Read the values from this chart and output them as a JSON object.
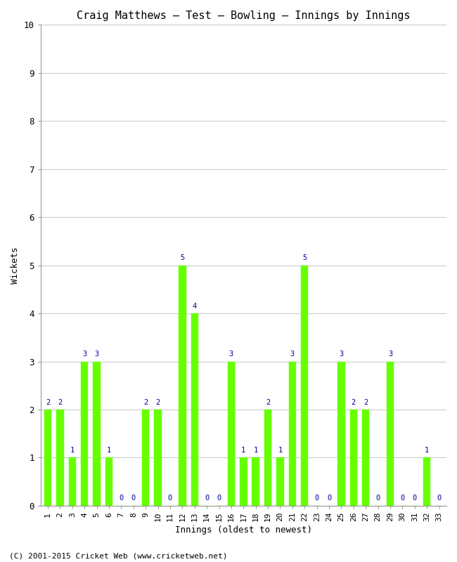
{
  "title": "Craig Matthews – Test – Bowling – Innings by Innings",
  "xlabel": "Innings (oldest to newest)",
  "ylabel": "Wickets",
  "footnote": "(C) 2001-2015 Cricket Web (www.cricketweb.net)",
  "bar_color": "#66FF00",
  "label_color": "#000099",
  "background_color": "#ffffff",
  "grid_color": "#cccccc",
  "ylim": [
    0,
    10
  ],
  "yticks": [
    0,
    1,
    2,
    3,
    4,
    5,
    6,
    7,
    8,
    9,
    10
  ],
  "innings": [
    1,
    2,
    3,
    4,
    5,
    6,
    7,
    8,
    9,
    10,
    11,
    12,
    13,
    14,
    15,
    16,
    17,
    18,
    19,
    20,
    21,
    22,
    23,
    24,
    25,
    26,
    27,
    28,
    29,
    30,
    31,
    32,
    33
  ],
  "wickets": [
    2,
    2,
    1,
    3,
    3,
    1,
    0,
    0,
    2,
    2,
    0,
    5,
    4,
    0,
    0,
    3,
    1,
    1,
    2,
    1,
    3,
    5,
    0,
    0,
    3,
    2,
    2,
    0,
    3,
    0,
    0,
    1,
    0
  ]
}
